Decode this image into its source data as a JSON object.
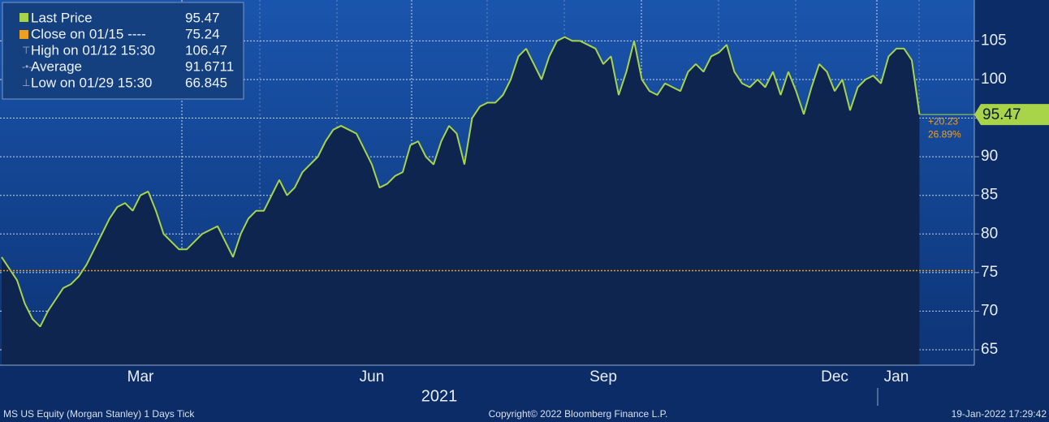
{
  "chart_data": {
    "type": "line",
    "x_label": "2021",
    "categories": [
      null,
      null,
      null,
      null,
      null,
      null,
      null,
      null,
      null,
      null,
      null,
      null,
      null,
      null,
      null,
      null,
      null,
      null,
      "Mar",
      null,
      null,
      null,
      null,
      null,
      null,
      null,
      null,
      null,
      null,
      null,
      null,
      null,
      null,
      null,
      null,
      null,
      null,
      null,
      null,
      null,
      null,
      null,
      null,
      null,
      null,
      null,
      null,
      null,
      "Jun",
      null,
      null,
      null,
      null,
      null,
      null,
      null,
      null,
      null,
      null,
      null,
      null,
      null,
      null,
      null,
      null,
      null,
      null,
      null,
      null,
      null,
      null,
      null,
      null,
      null,
      null,
      null,
      null,
      null,
      "Sep",
      null,
      null,
      null,
      null,
      null,
      null,
      null,
      null,
      null,
      null,
      null,
      null,
      null,
      null,
      null,
      null,
      null,
      null,
      null,
      null,
      null,
      null,
      null,
      null,
      null,
      null,
      null,
      null,
      null,
      "Dec",
      null,
      null,
      null,
      null,
      null,
      null,
      null,
      "Jan",
      null,
      null,
      null
    ],
    "series": [
      {
        "name": "Last Price",
        "color": "#a8d44a",
        "values": [
          77,
          75.5,
          74,
          71,
          69,
          68,
          70,
          71.5,
          73,
          73.5,
          74.5,
          76,
          78,
          80,
          82,
          83.5,
          84,
          83,
          85,
          85.5,
          83,
          80,
          79,
          78,
          78,
          79,
          80,
          80.5,
          81,
          79,
          77,
          80,
          82,
          83,
          83,
          85,
          87,
          85,
          86,
          88,
          89,
          90,
          92,
          93.5,
          94,
          93.5,
          93,
          91,
          89,
          86,
          86.5,
          87.5,
          88,
          91.5,
          92,
          90,
          89,
          92,
          94,
          93,
          89,
          95,
          96.5,
          97,
          97,
          98,
          100,
          103,
          104,
          102,
          100,
          103,
          105,
          105.5,
          105,
          105,
          104.5,
          104,
          102,
          103,
          98,
          101,
          105,
          100,
          98.5,
          98,
          99.5,
          99,
          98.5,
          101,
          102,
          101,
          103,
          103.5,
          104.5,
          101,
          99.5,
          99,
          100,
          99,
          101,
          98,
          101,
          98.5,
          95.5,
          99,
          102,
          101,
          98.5,
          100,
          96,
          99,
          100,
          100.5,
          99.5,
          103,
          104,
          104,
          102.5,
          95.47
        ]
      }
    ],
    "close": {
      "name": "Close on 01/15",
      "value": 75.24,
      "color": "#f0a020"
    },
    "ylim": [
      63,
      110.3
    ],
    "yticks": [
      65,
      70,
      75,
      80,
      85,
      90,
      95,
      100,
      105
    ],
    "grid": true,
    "legend": [
      {
        "label": "Last Price",
        "value": 95.47
      },
      {
        "label": "Close on 01/15 ----",
        "value": 75.24
      },
      {
        "label": "High on 01/12 15:30",
        "value": 106.47
      },
      {
        "label": "Average",
        "value": 91.6711
      },
      {
        "label": "Low on 01/29 15:30",
        "value": 66.845
      }
    ],
    "price_tag": "95.47",
    "change": "+20.23",
    "change_pct": "26.89%"
  },
  "footer": {
    "left": "MS US Equity (Morgan Stanley) 1 Days  Tick",
    "center": "Copyright© 2022 Bloomberg Finance L.P.",
    "right": "19-Jan-2022 17:29:42"
  }
}
